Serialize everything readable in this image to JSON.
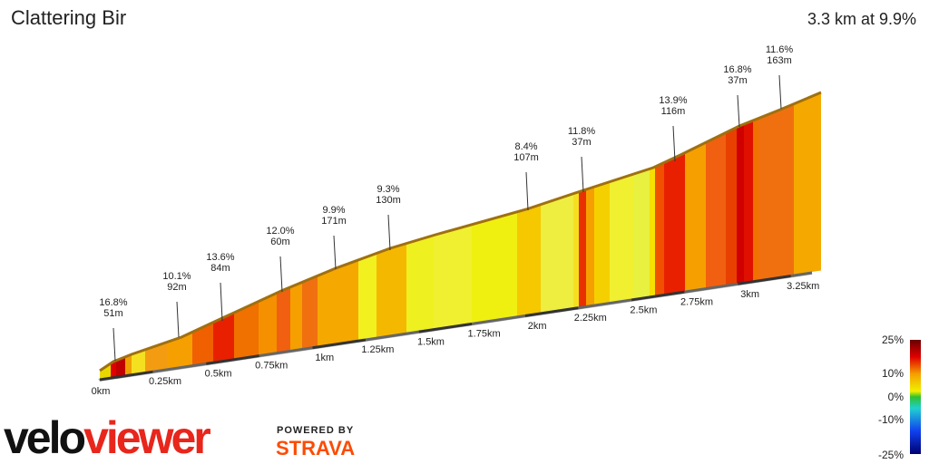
{
  "title": "Clattering Bir",
  "summary": "3.3 km at 9.9%",
  "annotations": [
    {
      "grade": "16.8%",
      "length": "51m"
    },
    {
      "grade": "10.1%",
      "length": "92m"
    },
    {
      "grade": "13.6%",
      "length": "84m"
    },
    {
      "grade": "12.0%",
      "length": "60m"
    },
    {
      "grade": "9.9%",
      "length": "171m"
    },
    {
      "grade": "9.3%",
      "length": "130m"
    },
    {
      "grade": "8.4%",
      "length": "107m"
    },
    {
      "grade": "11.8%",
      "length": "37m"
    },
    {
      "grade": "13.9%",
      "length": "116m"
    },
    {
      "grade": "16.8%",
      "length": "37m"
    },
    {
      "grade": "11.6%",
      "length": "163m"
    }
  ],
  "distance_ticks": [
    "0km",
    "0.25km",
    "0.5km",
    "0.75km",
    "1km",
    "1.25km",
    "1.5km",
    "1.75km",
    "2km",
    "2.25km",
    "2.5km",
    "2.75km",
    "3km",
    "3.25km"
  ],
  "legend": {
    "ticks": [
      "25%",
      "10%",
      "0%",
      "-10%",
      "-25%"
    ]
  },
  "branding": {
    "logo_dark": "velo",
    "logo_red": "viewer",
    "powered_by": "POWERED BY",
    "strava": "STRAVA"
  }
}
